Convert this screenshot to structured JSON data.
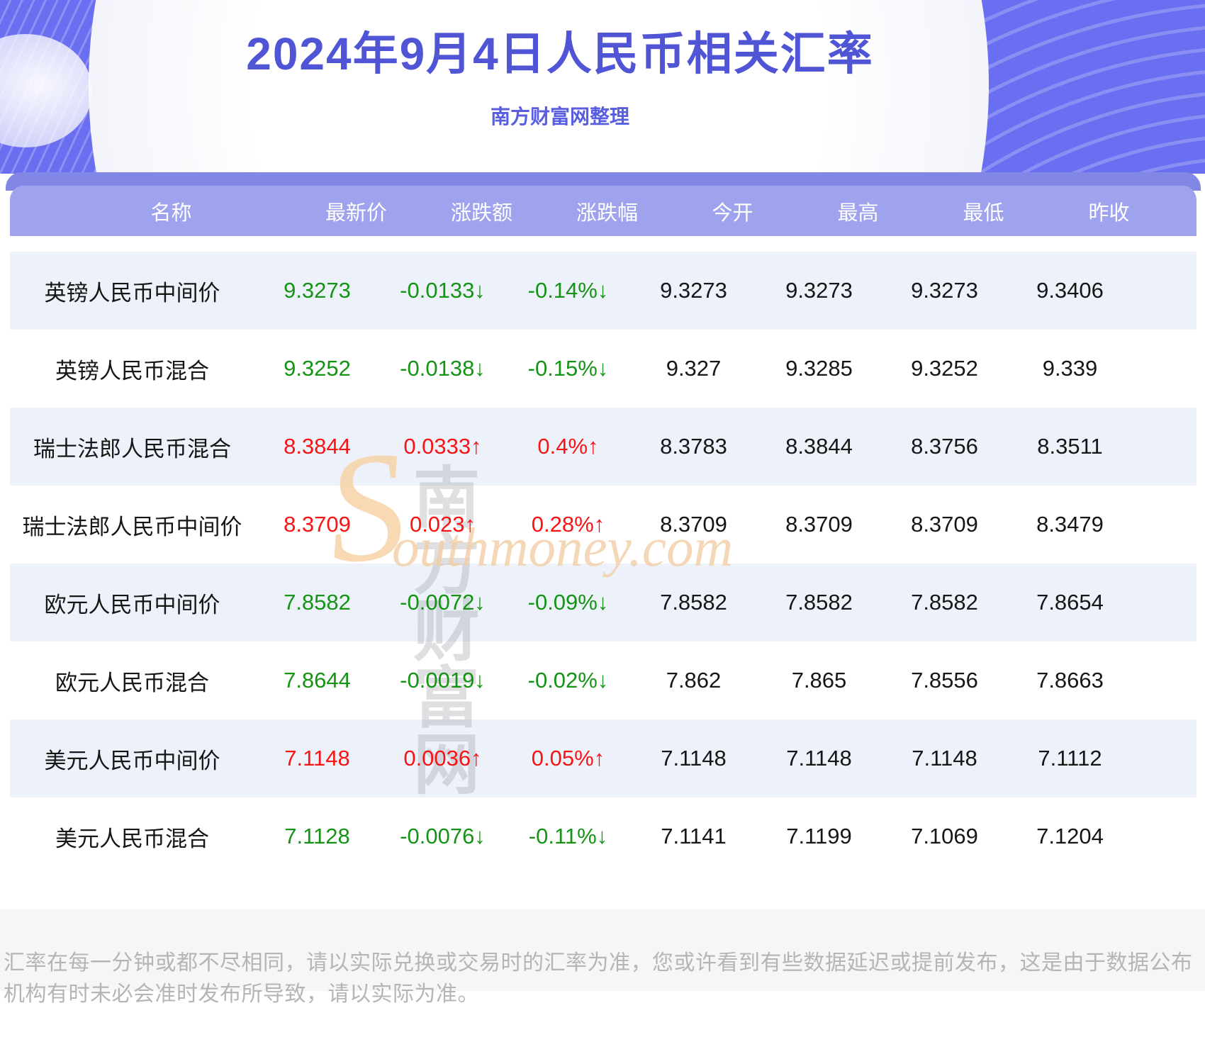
{
  "page": {
    "disclaimer": "汇率在每一分钟或都不尽相同，请以实际兑换或交易时的汇率为准，您或许看到有些数据延迟或提前发布，这是由于数据公布机构有时未必会准时发布所导致，请以实际为准。"
  },
  "watermark": {
    "latin_initial": "S",
    "cjk": "南方财富网",
    "latin_rest": "outhmoney.com"
  },
  "colors": {
    "up": "#f81414",
    "down": "#159315",
    "accent_title": "#5055d6",
    "accent_subtitle": "#585ee0",
    "band_dark": "#8286e4",
    "band_light": "#9fa2ec",
    "row_highlight": "#edf2fa"
  },
  "chart_data": {
    "type": "table",
    "title": "2024年9月4日人民币相关汇率",
    "subtitle": "南方财富网整理",
    "columns": [
      "名称",
      "最新价",
      "涨跌额",
      "涨跌幅",
      "今开",
      "最高",
      "最低",
      "昨收"
    ],
    "rows": [
      {
        "name": "英镑人民币中间价",
        "latest": "9.3273",
        "change": "-0.0133↓",
        "pct": "-0.14%↓",
        "open": "9.3273",
        "high": "9.3273",
        "low": "9.3273",
        "prev": "9.3406",
        "trend": "down"
      },
      {
        "name": "英镑人民币混合",
        "latest": "9.3252",
        "change": "-0.0138↓",
        "pct": "-0.15%↓",
        "open": "9.327",
        "high": "9.3285",
        "low": "9.3252",
        "prev": "9.339",
        "trend": "down"
      },
      {
        "name": "瑞士法郎人民币混合",
        "latest": "8.3844",
        "change": "0.0333↑",
        "pct": "0.4%↑",
        "open": "8.3783",
        "high": "8.3844",
        "low": "8.3756",
        "prev": "8.3511",
        "trend": "up"
      },
      {
        "name": "瑞士法郎人民币中间价",
        "latest": "8.3709",
        "change": "0.023↑",
        "pct": "0.28%↑",
        "open": "8.3709",
        "high": "8.3709",
        "low": "8.3709",
        "prev": "8.3479",
        "trend": "up"
      },
      {
        "name": "欧元人民币中间价",
        "latest": "7.8582",
        "change": "-0.0072↓",
        "pct": "-0.09%↓",
        "open": "7.8582",
        "high": "7.8582",
        "low": "7.8582",
        "prev": "7.8654",
        "trend": "down"
      },
      {
        "name": "欧元人民币混合",
        "latest": "7.8644",
        "change": "-0.0019↓",
        "pct": "-0.02%↓",
        "open": "7.862",
        "high": "7.865",
        "low": "7.8556",
        "prev": "7.8663",
        "trend": "down"
      },
      {
        "name": "美元人民币中间价",
        "latest": "7.1148",
        "change": "0.0036↑",
        "pct": "0.05%↑",
        "open": "7.1148",
        "high": "7.1148",
        "low": "7.1148",
        "prev": "7.1112",
        "trend": "up"
      },
      {
        "name": "美元人民币混合",
        "latest": "7.1128",
        "change": "-0.0076↓",
        "pct": "-0.11%↓",
        "open": "7.1141",
        "high": "7.1199",
        "low": "7.1069",
        "prev": "7.1204",
        "trend": "down"
      }
    ]
  }
}
